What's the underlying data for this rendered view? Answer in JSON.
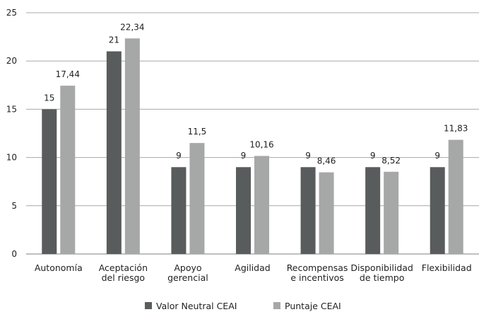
{
  "chart_data": {
    "type": "bar",
    "categories": [
      [
        "Autonomía"
      ],
      [
        "Aceptación",
        "del riesgo"
      ],
      [
        "Apoyo",
        "gerencial"
      ],
      [
        "Agilidad"
      ],
      [
        "Recompensas",
        "e incentivos"
      ],
      [
        "Disponibilidad",
        "de tiempo"
      ],
      [
        "Flexibilidad"
      ]
    ],
    "series": [
      {
        "name": "Valor Neutral CEAI",
        "color": "#595c5c",
        "values": [
          15,
          21,
          9,
          9,
          9,
          9,
          9
        ],
        "labels": [
          "15",
          "21",
          "9",
          "9",
          "9",
          "9",
          "9"
        ]
      },
      {
        "name": "Puntaje CEAI",
        "color": "#a6a7a7",
        "values": [
          17.44,
          22.34,
          11.5,
          10.16,
          8.46,
          8.52,
          11.83
        ],
        "labels": [
          "17,44",
          "22,34",
          "11,5",
          "10,16",
          "8,46",
          "8,52",
          "11,83"
        ]
      }
    ],
    "ylim": [
      0,
      25
    ],
    "yticks": [
      0,
      5,
      10,
      15,
      20,
      25
    ],
    "grid": true,
    "legend": "bottom",
    "title": "",
    "xlabel": "",
    "ylabel": ""
  }
}
